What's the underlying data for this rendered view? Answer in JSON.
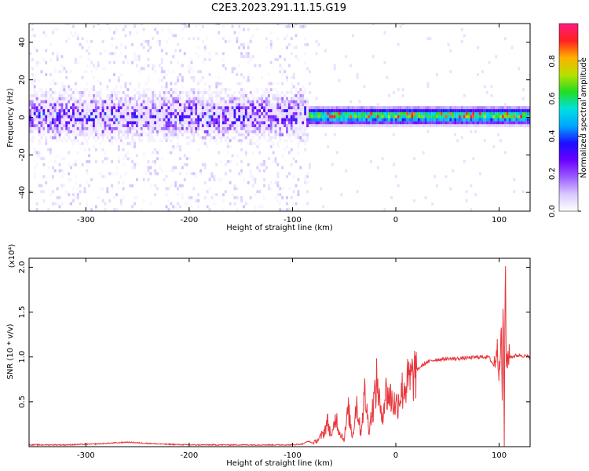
{
  "title": "C2E3.2023.291.11.15.G19",
  "colors": {
    "line": "#e8383d",
    "colormap": [
      "#ffffff",
      "#d8c8ff",
      "#9a5cff",
      "#6a00ff",
      "#1a10ff",
      "#00a6ff",
      "#00e0e0",
      "#22dd22",
      "#b8e000",
      "#ffb000",
      "#ff2020",
      "#ff1c80"
    ]
  },
  "chart_data": [
    {
      "type": "heatmap",
      "xlabel": "Height of straight line (km)",
      "ylabel": "Frequency (Hz)",
      "colorbar_label": "Normalized spectral amplitude",
      "xlim": [
        -355,
        130
      ],
      "ylim": [
        -50,
        50
      ],
      "xticks": [
        -300,
        -200,
        -100,
        0,
        100
      ],
      "yticks": [
        -40,
        -20,
        0,
        20,
        40
      ],
      "colorbar_ticks": [
        "0.0",
        "0.2",
        "0.4",
        "0.6",
        "0.8"
      ],
      "colorbar_range": [
        0,
        1
      ]
    },
    {
      "type": "line",
      "xlabel": "Height of straight line (km)",
      "ylabel": "SNR (10 * v/v)",
      "y_multiplier_label": "(x10⁴)",
      "xlim": [
        -355,
        130
      ],
      "ylim": [
        0,
        2.1
      ],
      "xticks": [
        -300,
        -200,
        -100,
        0,
        100
      ],
      "yticks": [
        "0.5",
        "1.0",
        "1.5",
        "2.0"
      ],
      "series": [
        {
          "x": [
            -355,
            -320,
            -290,
            -260,
            -230,
            -200,
            -160,
            -120,
            -100,
            -90,
            -85,
            -80,
            -75,
            -70,
            -66,
            -62,
            -58,
            -55,
            -50,
            -46,
            -42,
            -38,
            -34,
            -30,
            -26,
            -22,
            -18,
            -14,
            -10,
            -5,
            0,
            5,
            10,
            15,
            20,
            25,
            30,
            35,
            40,
            50,
            60,
            70,
            80,
            90,
            95,
            98,
            100,
            102,
            103,
            104,
            105,
            106,
            107,
            108,
            110,
            115,
            120,
            125,
            130
          ],
          "y": [
            0.02,
            0.02,
            0.03,
            0.05,
            0.03,
            0.02,
            0.02,
            0.02,
            0.02,
            0.03,
            0.06,
            0.04,
            0.08,
            0.15,
            0.28,
            0.1,
            0.35,
            0.18,
            0.08,
            0.42,
            0.1,
            0.5,
            0.15,
            0.6,
            0.2,
            0.45,
            0.75,
            0.3,
            0.6,
            0.55,
            0.45,
            0.6,
            0.7,
            0.75,
            0.85,
            0.9,
            0.94,
            0.96,
            0.97,
            0.98,
            0.98,
            0.99,
            1.0,
            1.0,
            0.9,
            1.1,
            0.85,
            1.35,
            0.5,
            1.65,
            0.1,
            2.1,
            0.95,
            1.0,
            1.0,
            1.01,
            1.02,
            1.01,
            1.0
          ]
        }
      ]
    }
  ]
}
